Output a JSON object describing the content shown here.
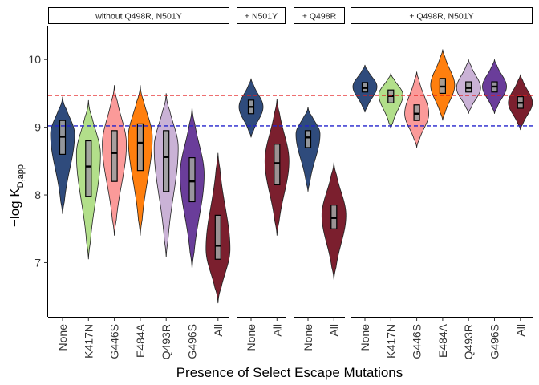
{
  "chart_data": {
    "type": "violin",
    "xlabel": "Presence of Select Escape Mutations",
    "ylabel": "−log K",
    "ylabel_subscript": "D,app",
    "ylim": [
      6.2,
      10.5
    ],
    "yticks": [
      7,
      8,
      9,
      10
    ],
    "grid": false,
    "reference_lines": [
      {
        "y": 9.47,
        "color": "#e41a1c",
        "style": "dashed"
      },
      {
        "y": 9.02,
        "color": "#2222cc",
        "style": "dashed"
      }
    ],
    "colors": {
      "None": "#2f4b7c",
      "K417N": "#b2df8a",
      "G446S": "#fb9a99",
      "E484A": "#ff7f0e",
      "Q493R": "#cab2d6",
      "G496S": "#6a3d9a",
      "All": "#7b1f2e"
    },
    "panels": [
      {
        "strip": "without Q498R, N501Y",
        "groups": [
          {
            "category": "None",
            "median": 8.86,
            "q1": 8.6,
            "q3": 9.1,
            "min": 7.72,
            "max": 9.45,
            "mode": 8.9
          },
          {
            "category": "K417N",
            "median": 8.42,
            "q1": 7.98,
            "q3": 8.8,
            "min": 7.05,
            "max": 9.4,
            "mode": 8.6
          },
          {
            "category": "G446S",
            "median": 8.62,
            "q1": 8.2,
            "q3": 8.95,
            "min": 7.4,
            "max": 9.62,
            "mode": 8.75
          },
          {
            "category": "E484A",
            "median": 8.77,
            "q1": 8.36,
            "q3": 9.05,
            "min": 7.4,
            "max": 9.62,
            "mode": 8.85
          },
          {
            "category": "Q493R",
            "median": 8.56,
            "q1": 8.05,
            "q3": 8.95,
            "min": 7.08,
            "max": 9.5,
            "mode": 8.7
          },
          {
            "category": "G496S",
            "median": 8.2,
            "q1": 7.9,
            "q3": 8.55,
            "min": 6.9,
            "max": 9.3,
            "mode": 8.3
          },
          {
            "category": "All",
            "median": 7.25,
            "q1": 7.05,
            "q3": 7.7,
            "min": 6.4,
            "max": 8.62,
            "mode": 7.2
          }
        ]
      },
      {
        "strip": "+ N501Y",
        "groups": [
          {
            "category": "None",
            "median": 9.3,
            "q1": 9.2,
            "q3": 9.4,
            "min": 8.85,
            "max": 9.72,
            "mode": 9.3
          },
          {
            "category": "All",
            "median": 8.47,
            "q1": 8.15,
            "q3": 8.75,
            "min": 7.4,
            "max": 9.42,
            "mode": 8.5
          }
        ]
      },
      {
        "strip": "+ Q498R",
        "groups": [
          {
            "category": "None",
            "median": 8.85,
            "q1": 8.7,
            "q3": 8.95,
            "min": 8.05,
            "max": 9.3,
            "mode": 8.9
          },
          {
            "category": "All",
            "median": 7.66,
            "q1": 7.5,
            "q3": 7.85,
            "min": 6.75,
            "max": 8.48,
            "mode": 7.7
          }
        ]
      },
      {
        "strip": "+ Q498R, N501Y",
        "groups": [
          {
            "category": "None",
            "median": 9.58,
            "q1": 9.52,
            "q3": 9.66,
            "min": 9.22,
            "max": 9.92,
            "mode": 9.6
          },
          {
            "category": "K417N",
            "median": 9.46,
            "q1": 9.36,
            "q3": 9.55,
            "min": 8.98,
            "max": 9.8,
            "mode": 9.48
          },
          {
            "category": "G446S",
            "median": 9.2,
            "q1": 9.1,
            "q3": 9.33,
            "min": 8.7,
            "max": 9.82,
            "mode": 9.2
          },
          {
            "category": "E484A",
            "median": 9.6,
            "q1": 9.5,
            "q3": 9.72,
            "min": 9.1,
            "max": 10.15,
            "mode": 9.62
          },
          {
            "category": "Q493R",
            "median": 9.58,
            "q1": 9.52,
            "q3": 9.67,
            "min": 9.2,
            "max": 10.0,
            "mode": 9.58
          },
          {
            "category": "G496S",
            "median": 9.6,
            "q1": 9.52,
            "q3": 9.67,
            "min": 9.2,
            "max": 10.0,
            "mode": 9.6
          },
          {
            "category": "All",
            "median": 9.36,
            "q1": 9.28,
            "q3": 9.45,
            "min": 8.96,
            "max": 9.78,
            "mode": 9.36
          }
        ]
      }
    ]
  }
}
